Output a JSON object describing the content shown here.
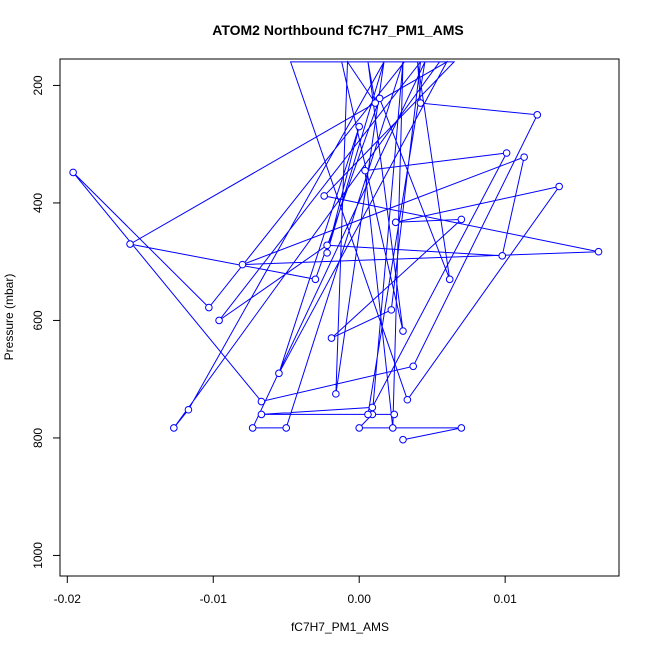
{
  "chart_data": {
    "type": "line",
    "title": "ATOM2 Northbound fC7H7_PM1_AMS",
    "xlabel": "fC7H7_PM1_AMS",
    "ylabel": "Pressure (mbar)",
    "xlim": [
      -0.0205,
      0.0178
    ],
    "ylim": [
      1035,
      155
    ],
    "y_reversed": true,
    "xticks": [
      -0.02,
      -0.01,
      0.0,
      0.01
    ],
    "xtick_labels": [
      "-0.02",
      "-0.01",
      "0.00",
      "0.01"
    ],
    "yticks": [
      200,
      400,
      600,
      800,
      1000
    ],
    "ytick_labels": [
      "200",
      "400",
      "600",
      "800",
      "1000"
    ],
    "grid": false,
    "series": [
      {
        "color": "#0000ff",
        "marker": "open-circle",
        "x": [
          0.003,
          0.007,
          0.0,
          0.0009,
          0.003,
          -0.005,
          -0.0073,
          0.0045,
          0.0006,
          0.0024,
          -0.0067,
          0.0009,
          0.0101,
          0.0004,
          0.0023,
          0.003,
          0.004,
          0.0062,
          0.0014,
          -0.003,
          -0.0157,
          0.006,
          -0.0055,
          0.0,
          -0.0022,
          0.0017,
          -0.0016,
          -0.0008,
          0.0011,
          0.0006,
          0.003,
          -0.0012,
          0.004,
          0.0042,
          0.0122,
          0.0037,
          -0.0067,
          -0.0196,
          -0.0103,
          0.0031,
          0.0042,
          -0.0096,
          -0.0022,
          0.0098,
          0.0113,
          -0.008,
          0.0164,
          -0.0024,
          0.0065,
          0.0042,
          0.0022,
          -0.0019,
          0.007,
          0.0025,
          0.0137,
          0.0033,
          -0.0047,
          0.0017,
          -0.0117,
          -0.0127,
          0.0055
        ],
        "y": [
          803,
          783,
          783,
          760,
          160,
          783,
          783,
          160,
          760,
          760,
          760,
          748,
          315,
          345,
          783,
          160,
          160,
          530,
          222,
          530,
          470,
          160,
          690,
          270,
          485,
          160,
          725,
          160,
          230,
          160,
          618,
          160,
          160,
          230,
          250,
          678,
          738,
          348,
          578,
          160,
          160,
          600,
          472,
          490,
          322,
          505,
          483,
          388,
          160,
          160,
          582,
          630,
          428,
          433,
          372,
          735,
          160,
          160,
          752,
          783,
          160
        ]
      }
    ]
  }
}
